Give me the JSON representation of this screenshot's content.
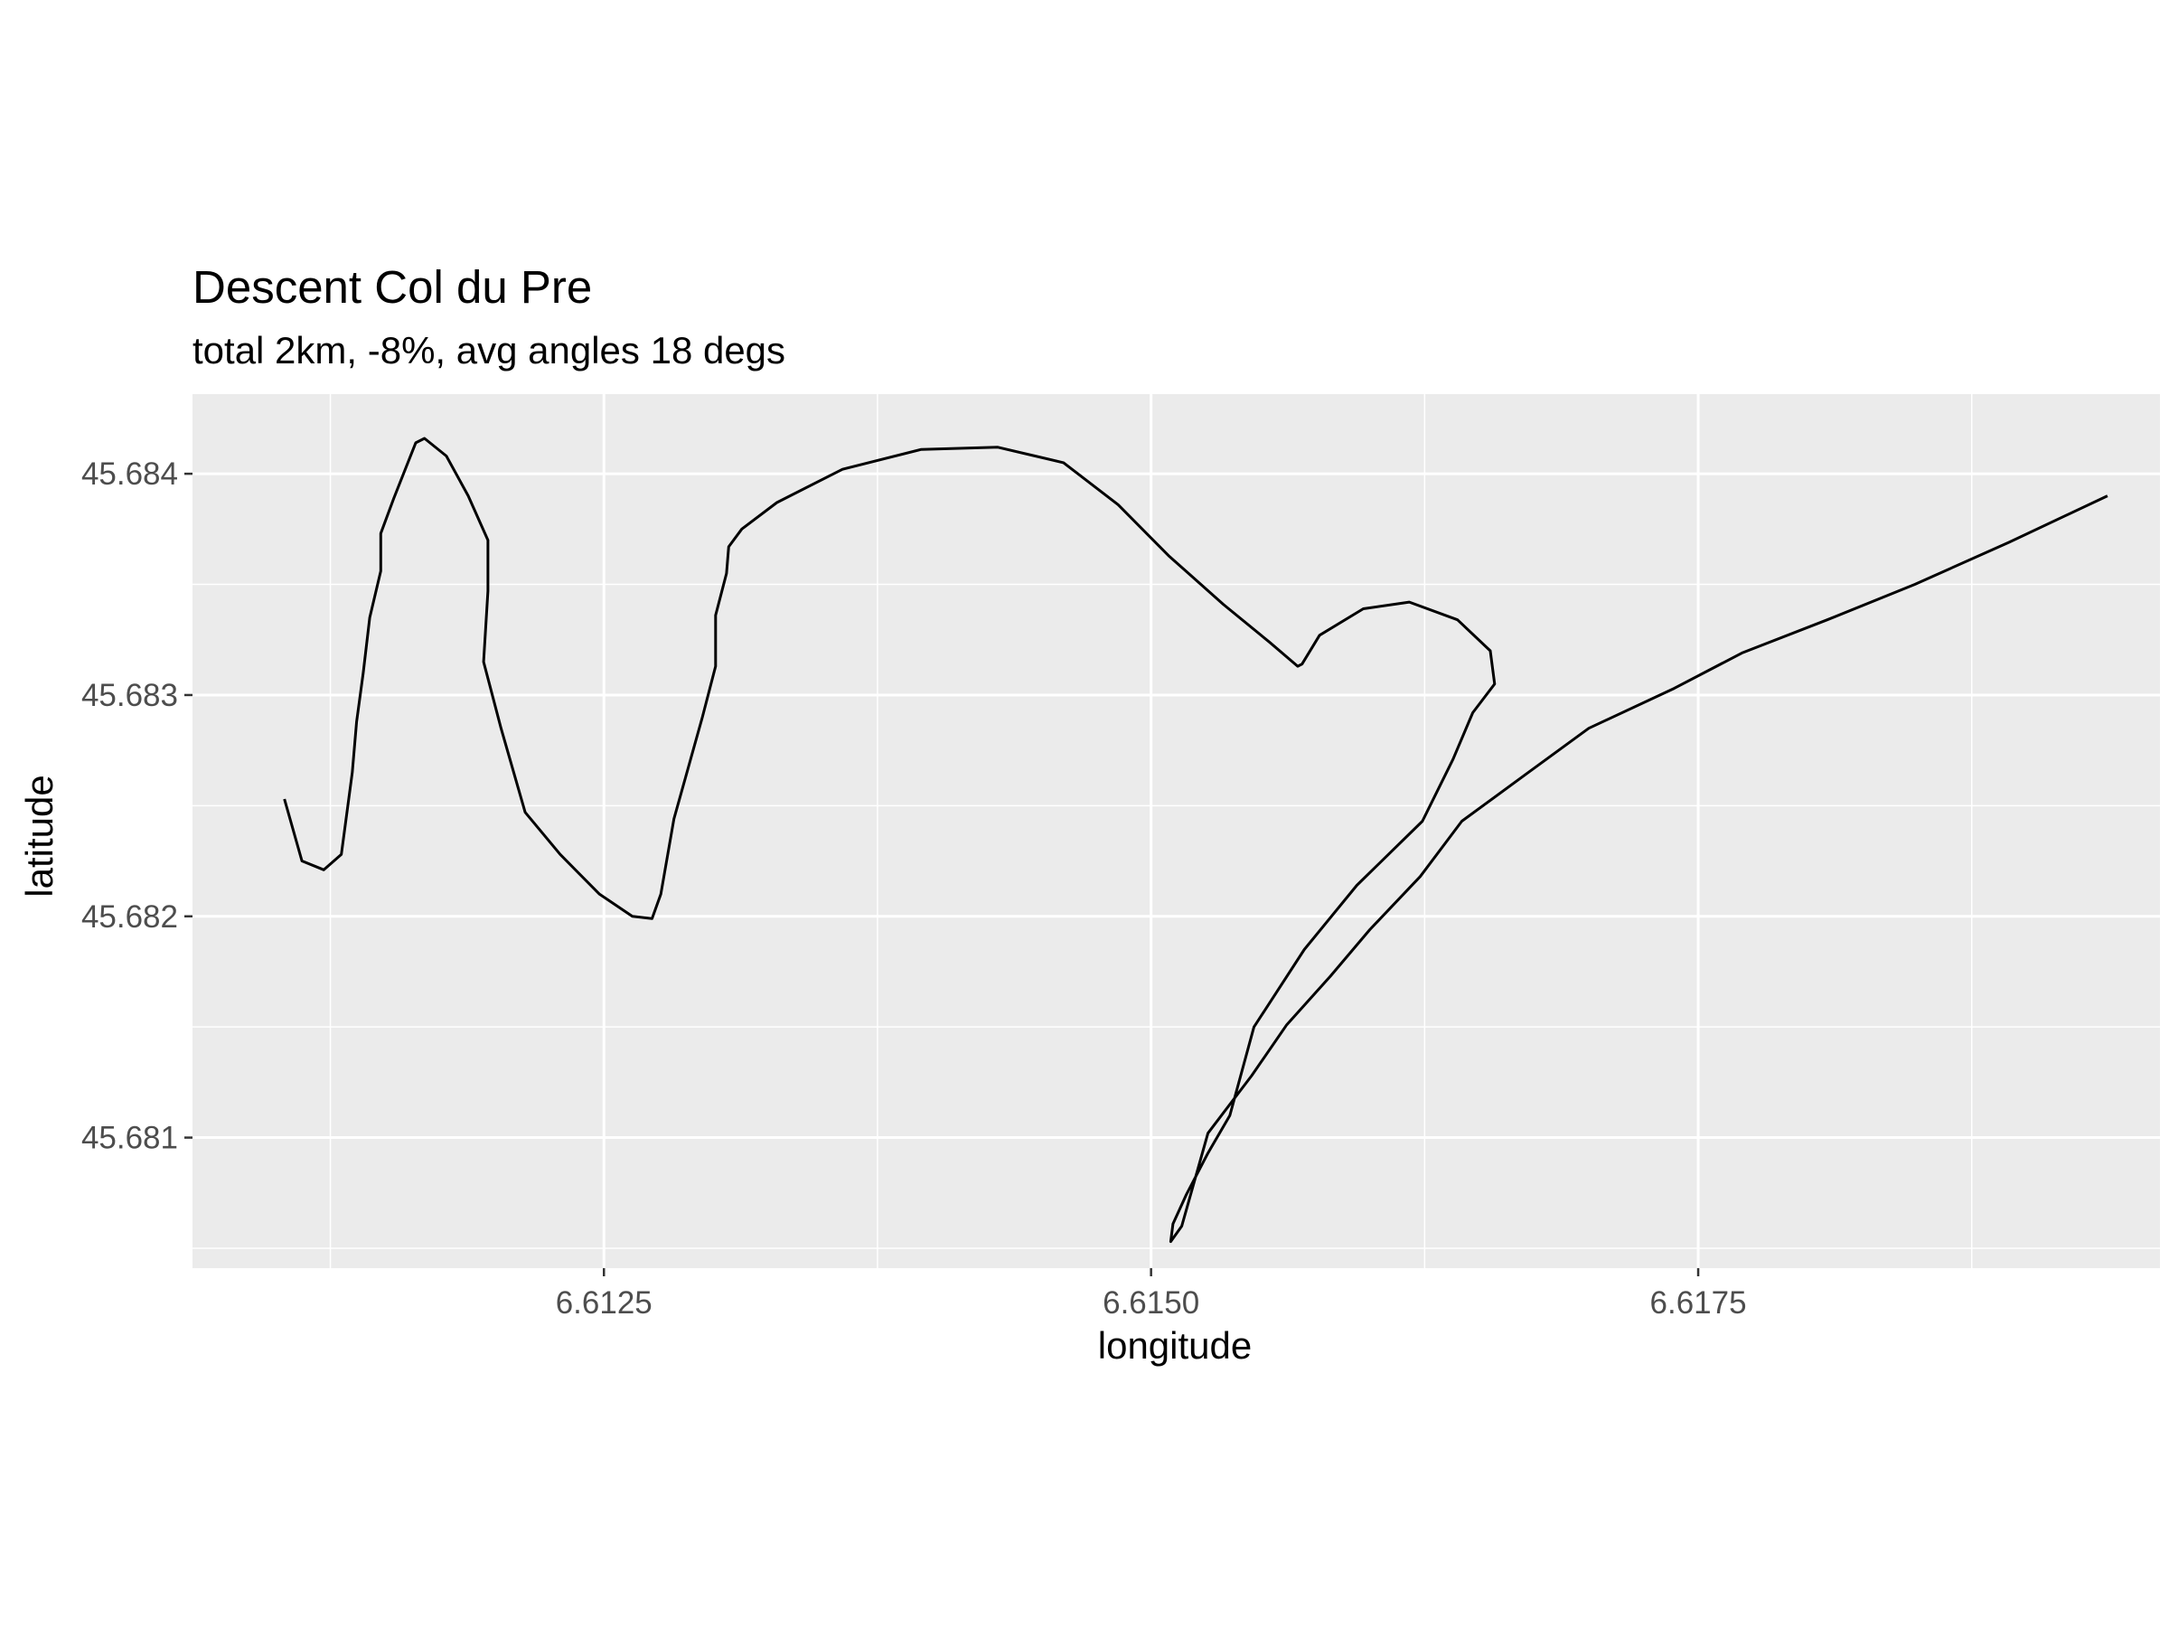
{
  "chart_data": {
    "type": "line",
    "title": "Descent Col du Pre",
    "subtitle": "total 2km, -8%, avg angles 18 degs",
    "xlabel": "longitude",
    "ylabel": "latitude",
    "xlim": [
      6.61062,
      6.61961
    ],
    "ylim": [
      45.68041,
      45.68436
    ],
    "x_ticks": [
      6.6125,
      6.615,
      6.6175
    ],
    "x_tick_labels": [
      "6.6125",
      "6.6150",
      "6.6175"
    ],
    "x_minor": [
      6.61125,
      6.61375,
      6.61625,
      6.61875
    ],
    "y_ticks": [
      45.681,
      45.682,
      45.683,
      45.684
    ],
    "y_tick_labels": [
      "45.681",
      "45.682",
      "45.683",
      "45.684"
    ],
    "y_minor": [
      45.6805,
      45.6815,
      45.6825,
      45.6835
    ],
    "grid": true,
    "colors": {
      "panel": "#ebebeb",
      "grid": "#ffffff",
      "line": "#000000",
      "tick": "#333333"
    },
    "series": [
      {
        "x": [
          6.61104,
          6.61112,
          6.61122,
          6.6113,
          6.61135,
          6.61137,
          6.6114,
          6.61143,
          6.61148,
          6.61148,
          6.61154,
          6.61164,
          6.61168,
          6.61178,
          6.61188,
          6.61197,
          6.61197,
          6.61195,
          6.61203,
          6.61214,
          6.6123,
          6.61248,
          6.61263,
          6.61272,
          6.61276,
          6.61282,
          6.61295,
          6.61301,
          6.61301,
          6.61306,
          6.61307,
          6.61313,
          6.61329,
          6.61359,
          6.61395,
          6.6143,
          6.6146,
          6.61485,
          6.61508,
          6.61533,
          6.61554,
          6.61567,
          6.61569,
          6.61577,
          6.61597,
          6.61618,
          6.6164,
          6.61655,
          6.61657,
          6.61647,
          6.61638,
          6.61624,
          6.61594,
          6.6157,
          6.61547,
          6.61536,
          6.61526,
          6.61516,
          6.6151,
          6.61509,
          6.61514,
          6.61526,
          6.61546,
          6.61562,
          6.61582,
          6.616,
          6.61623,
          6.61642,
          6.61671,
          6.617,
          6.61739,
          6.6177,
          6.61809,
          6.61849,
          6.61892,
          6.61937
        ],
        "y": [
          45.68253,
          45.68225,
          45.68221,
          45.68228,
          45.68265,
          45.68288,
          45.6831,
          45.68335,
          45.68356,
          45.68373,
          45.68389,
          45.68414,
          45.68416,
          45.68408,
          45.6839,
          45.6837,
          45.68347,
          45.68315,
          45.68285,
          45.68247,
          45.68228,
          45.6821,
          45.682,
          45.68199,
          45.6821,
          45.68244,
          45.6829,
          45.68313,
          45.68336,
          45.68355,
          45.68367,
          45.68375,
          45.68387,
          45.68402,
          45.68411,
          45.68412,
          45.68405,
          45.68386,
          45.68363,
          45.68341,
          45.68324,
          45.68313,
          45.68314,
          45.68327,
          45.68339,
          45.68342,
          45.68334,
          45.6832,
          45.68305,
          45.68292,
          45.68271,
          45.68243,
          45.68214,
          45.68185,
          45.6815,
          45.6811,
          45.68093,
          45.68074,
          45.68061,
          45.68053,
          45.6806,
          45.68102,
          45.68128,
          45.68151,
          45.68173,
          45.68194,
          45.68218,
          45.68243,
          45.68264,
          45.68285,
          45.68303,
          45.68319,
          45.68334,
          45.6835,
          45.68369,
          45.6839
        ]
      }
    ]
  }
}
